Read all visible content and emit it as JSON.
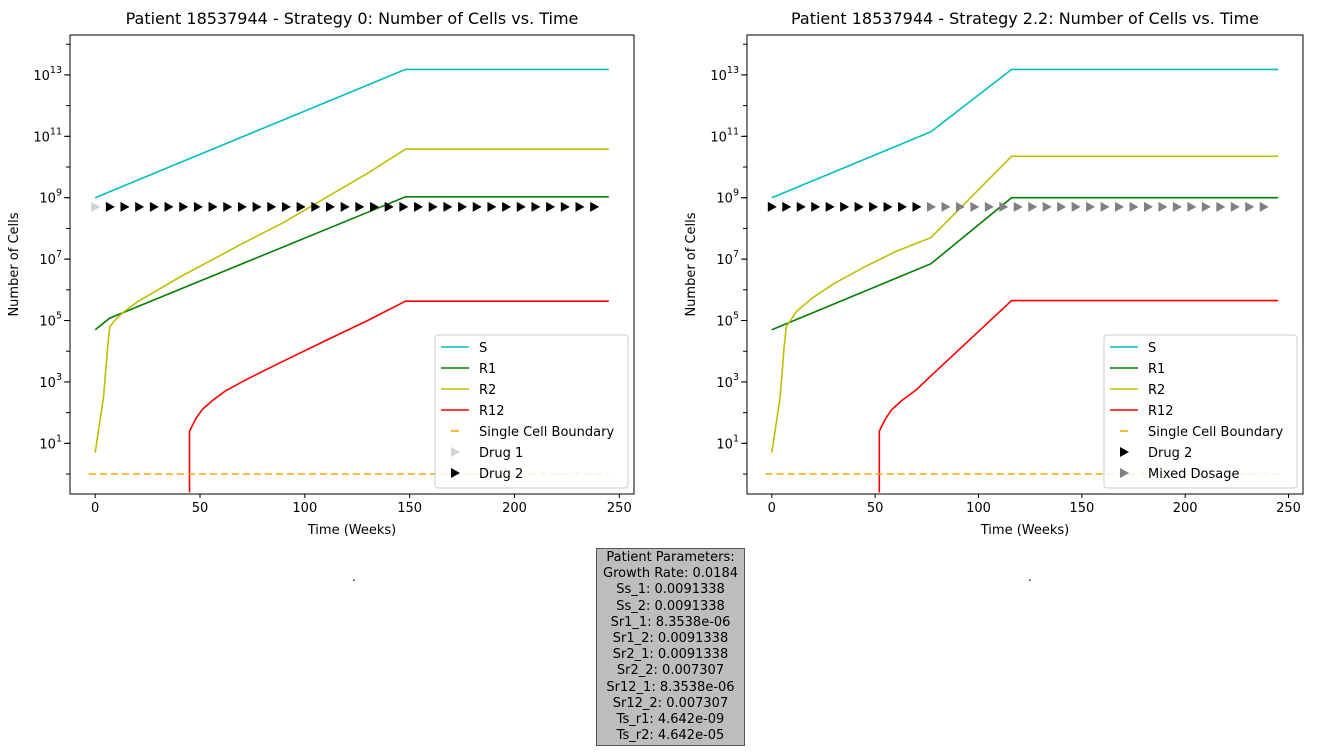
{
  "chart_data": [
    {
      "type": "line",
      "title": "Patient 18537944 - Strategy 0: Number of Cells vs. Time",
      "xlabel": "Time (Weeks)",
      "ylabel": "Number of Cells",
      "yscale": "log",
      "xlim": [
        -12,
        257
      ],
      "ylim_log10": [
        -0.65,
        14.3
      ],
      "xticks": [
        0,
        50,
        100,
        150,
        200,
        250
      ],
      "yticks": [
        1,
        3,
        5,
        7,
        9,
        11,
        13
      ],
      "legend_position": "lower right",
      "series": [
        {
          "name": "S",
          "color": "#00bfbf",
          "style": "solid",
          "points": [
            [
              0,
              9.0
            ],
            [
              148,
              13.18
            ],
            [
              245,
              13.18
            ]
          ]
        },
        {
          "name": "R1",
          "color": "#008000",
          "style": "solid",
          "points": [
            [
              0,
              4.7
            ],
            [
              7,
              5.08
            ],
            [
              148,
              9.03
            ],
            [
              245,
              9.03
            ]
          ]
        },
        {
          "name": "R2",
          "color": "#bfbf00",
          "style": "solid",
          "points": [
            [
              0,
              0.7
            ],
            [
              4,
              2.5
            ],
            [
              6,
              4.15
            ],
            [
              7,
              4.8
            ],
            [
              10,
              5.05
            ],
            [
              14,
              5.3
            ],
            [
              20,
              5.6
            ],
            [
              30,
              6.0
            ],
            [
              40,
              6.4
            ],
            [
              55,
              6.95
            ],
            [
              70,
              7.5
            ],
            [
              90,
              8.2
            ],
            [
              110,
              9.0
            ],
            [
              130,
              9.8
            ],
            [
              148,
              10.58
            ],
            [
              245,
              10.58
            ]
          ]
        },
        {
          "name": "R12",
          "color": "#ff0000",
          "style": "solid",
          "points": [
            [
              45,
              -0.6
            ],
            [
              45,
              1.4
            ],
            [
              48,
              1.8
            ],
            [
              51,
              2.1
            ],
            [
              56,
              2.4
            ],
            [
              62,
              2.7
            ],
            [
              70,
              3.0
            ],
            [
              80,
              3.35
            ],
            [
              95,
              3.85
            ],
            [
              110,
              4.35
            ],
            [
              130,
              5.0
            ],
            [
              148,
              5.63
            ],
            [
              245,
              5.63
            ]
          ]
        },
        {
          "name": "Single Cell Boundary",
          "color": "#ffa500",
          "style": "dashed",
          "points": [
            [
              -3,
              0
            ],
            [
              245,
              0
            ]
          ]
        },
        {
          "name": "Drug 1",
          "color": "#d3d3d3",
          "style": "markers",
          "y": 8.7,
          "x": [
            0
          ]
        },
        {
          "name": "Drug 2",
          "color": "#000000",
          "style": "markers",
          "y": 8.7,
          "x": [
            7,
            14,
            21,
            28,
            35,
            42,
            49,
            56,
            63,
            70,
            77,
            84,
            91,
            98,
            105,
            112,
            119,
            126,
            133,
            140,
            147,
            154,
            161,
            168,
            175,
            182,
            189,
            196,
            203,
            210,
            217,
            224,
            231,
            238
          ]
        }
      ]
    },
    {
      "type": "line",
      "title": "Patient 18537944 - Strategy 2.2: Number of Cells vs. Time",
      "xlabel": "Time (Weeks)",
      "ylabel": "Number of Cells",
      "yscale": "log",
      "xlim": [
        -12,
        257
      ],
      "ylim_log10": [
        -0.65,
        14.3
      ],
      "xticks": [
        0,
        50,
        100,
        150,
        200,
        250
      ],
      "yticks": [
        1,
        3,
        5,
        7,
        9,
        11,
        13
      ],
      "legend_position": "lower right",
      "series": [
        {
          "name": "S",
          "color": "#00bfbf",
          "style": "solid",
          "points": [
            [
              0,
              9.0
            ],
            [
              77,
              11.15
            ],
            [
              116,
              13.18
            ],
            [
              245,
              13.18
            ]
          ]
        },
        {
          "name": "R1",
          "color": "#008000",
          "style": "solid",
          "points": [
            [
              0,
              4.7
            ],
            [
              77,
              6.85
            ],
            [
              116,
              9.0
            ],
            [
              245,
              9.0
            ]
          ]
        },
        {
          "name": "R2",
          "color": "#bfbf00",
          "style": "solid",
          "points": [
            [
              0,
              0.7
            ],
            [
              4,
              2.5
            ],
            [
              6,
              4.15
            ],
            [
              7,
              4.8
            ],
            [
              12,
              5.3
            ],
            [
              20,
              5.75
            ],
            [
              30,
              6.2
            ],
            [
              45,
              6.75
            ],
            [
              60,
              7.25
            ],
            [
              77,
              7.7
            ],
            [
              116,
              10.35
            ],
            [
              245,
              10.35
            ]
          ]
        },
        {
          "name": "R12",
          "color": "#ff0000",
          "style": "solid",
          "points": [
            [
              52,
              -0.6
            ],
            [
              52,
              1.4
            ],
            [
              55,
              1.8
            ],
            [
              58,
              2.1
            ],
            [
              63,
              2.4
            ],
            [
              70,
              2.75
            ],
            [
              77,
              3.2
            ],
            [
              116,
              5.65
            ],
            [
              245,
              5.65
            ]
          ]
        },
        {
          "name": "Single Cell Boundary",
          "color": "#ffa500",
          "style": "dashed",
          "points": [
            [
              -3,
              0
            ],
            [
              245,
              0
            ]
          ]
        },
        {
          "name": "Drug 2",
          "color": "#000000",
          "style": "markers",
          "y": 8.7,
          "x": [
            0,
            7,
            14,
            21,
            28,
            35,
            42,
            49,
            56,
            63,
            70
          ]
        },
        {
          "name": "Mixed Dosage",
          "color": "#808080",
          "style": "markers",
          "y": 8.7,
          "x": [
            77,
            84,
            91,
            98,
            105,
            112,
            119,
            126,
            133,
            140,
            147,
            154,
            161,
            168,
            175,
            182,
            189,
            196,
            203,
            210,
            217,
            224,
            231,
            238
          ]
        }
      ]
    }
  ],
  "params": {
    "lines": [
      "Patient Parameters:",
      "Growth Rate: 0.0184",
      "Ss_1: 0.0091338",
      "Ss_2: 0.0091338",
      "Sr1_1: 8.3538e-06",
      "Sr1_2: 0.0091338",
      "Sr2_1: 0.0091338",
      "Sr2_2: 0.007307",
      "Sr12_1: 8.3538e-06",
      "Sr12_2: 0.007307",
      "Ts_r1: 4.642e-09",
      "Ts_r2: 4.642e-05"
    ]
  },
  "empty_panels": [
    ".",
    "."
  ]
}
